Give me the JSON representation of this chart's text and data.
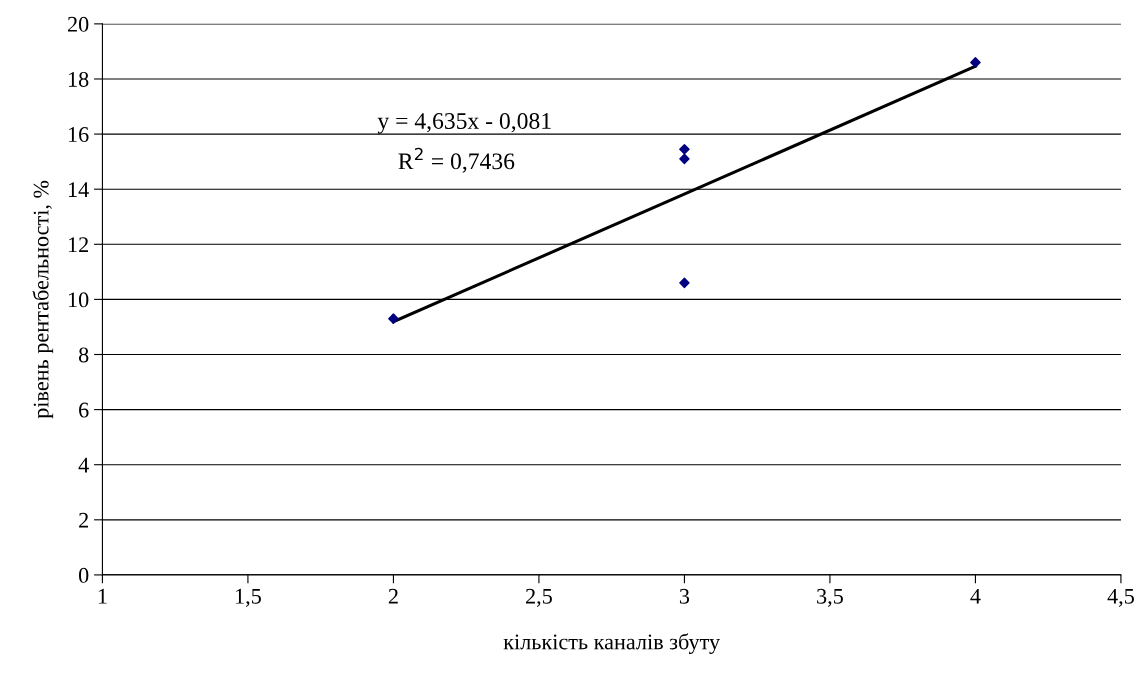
{
  "chart_data": {
    "type": "scatter",
    "xlabel": "кількість каналів збуту",
    "ylabel": "рівень рентабельності, %",
    "series": [
      {
        "color": "#000080",
        "marker": "diamond",
        "x": [
          2,
          3,
          3,
          3,
          4
        ],
        "values": [
          9.3,
          15.45,
          15.1,
          10.6,
          18.6
        ]
      },
      {
        "type": "line",
        "color": "#000000",
        "marker": "none",
        "line_style": "solid",
        "x": [
          2,
          4
        ],
        "values": [
          9.19,
          18.46
        ]
      }
    ],
    "annotations": [
      "y = 4,635x - 0,081",
      "R$^{2}$ = 0,7436"
    ],
    "xlim": [
      1,
      4.5
    ],
    "xticks": [
      1,
      {
        "value": 1.5,
        "label": "1,5"
      },
      2,
      {
        "value": 2.5,
        "label": "2,5"
      },
      3,
      {
        "value": 3.5,
        "label": "3,5"
      },
      4,
      {
        "value": 4.5,
        "label": "4,5"
      }
    ],
    "ylim": [
      0,
      20
    ],
    "yticks": [
      0,
      2,
      4,
      6,
      8,
      10,
      12,
      14,
      16,
      18,
      20
    ],
    "grid": "y",
    "legend": false
  }
}
